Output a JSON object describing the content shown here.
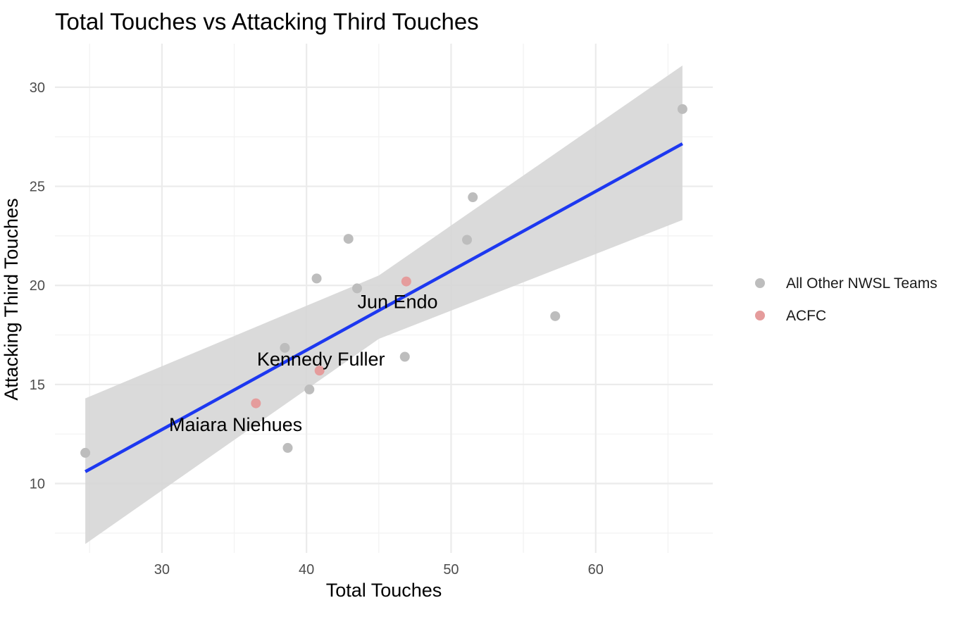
{
  "chart_data": {
    "type": "scatter",
    "title": "Total Touches vs Attacking Third Touches",
    "xlabel": "Total Touches",
    "ylabel": "Attacking Third Touches",
    "xlim": [
      22.6,
      68.1
    ],
    "ylim": [
      6.5,
      32.2
    ],
    "x_ticks": [
      30,
      40,
      50,
      60
    ],
    "y_ticks": [
      10,
      15,
      20,
      25,
      30
    ],
    "x_minor": [
      25,
      35,
      45,
      55,
      65
    ],
    "y_minor": [
      7.5,
      12.5,
      17.5,
      22.5,
      27.5
    ],
    "grid": true,
    "legend_position": "right",
    "series": [
      {
        "name": "All Other NWSL Teams",
        "color": "#bdbdbd",
        "points": [
          {
            "x": 24.7,
            "y": 11.55
          },
          {
            "x": 38.5,
            "y": 16.85
          },
          {
            "x": 38.7,
            "y": 11.8
          },
          {
            "x": 40.2,
            "y": 14.75
          },
          {
            "x": 40.7,
            "y": 20.35
          },
          {
            "x": 42.9,
            "y": 22.35
          },
          {
            "x": 43.5,
            "y": 19.85
          },
          {
            "x": 46.8,
            "y": 16.4
          },
          {
            "x": 51.1,
            "y": 22.3
          },
          {
            "x": 51.5,
            "y": 24.45
          },
          {
            "x": 57.2,
            "y": 18.45
          },
          {
            "x": 66.0,
            "y": 28.9
          }
        ]
      },
      {
        "name": "ACFC",
        "color": "#e59c9c",
        "points": [
          {
            "x": 36.5,
            "y": 14.05
          },
          {
            "x": 40.9,
            "y": 15.7
          },
          {
            "x": 46.9,
            "y": 20.2
          }
        ]
      }
    ],
    "labels": [
      {
        "text": "Jun Endo",
        "x": 46.3,
        "y": 19.1
      },
      {
        "text": "Kennedy Fuller",
        "x": 41.0,
        "y": 16.2
      },
      {
        "text": "Maiara Niehues",
        "x": 35.1,
        "y": 12.9
      }
    ],
    "trend": {
      "color": "#1d38f0",
      "start": [
        24.7,
        10.6
      ],
      "end": [
        66.0,
        27.15
      ],
      "band_upper": [
        [
          24.7,
          14.3
        ],
        [
          45.0,
          20.5
        ],
        [
          66.0,
          31.1
        ]
      ],
      "band_lower": [
        [
          24.7,
          6.95
        ],
        [
          45.0,
          17.3
        ],
        [
          66.0,
          23.3
        ]
      ],
      "band_color": "#d6d6d6"
    }
  }
}
